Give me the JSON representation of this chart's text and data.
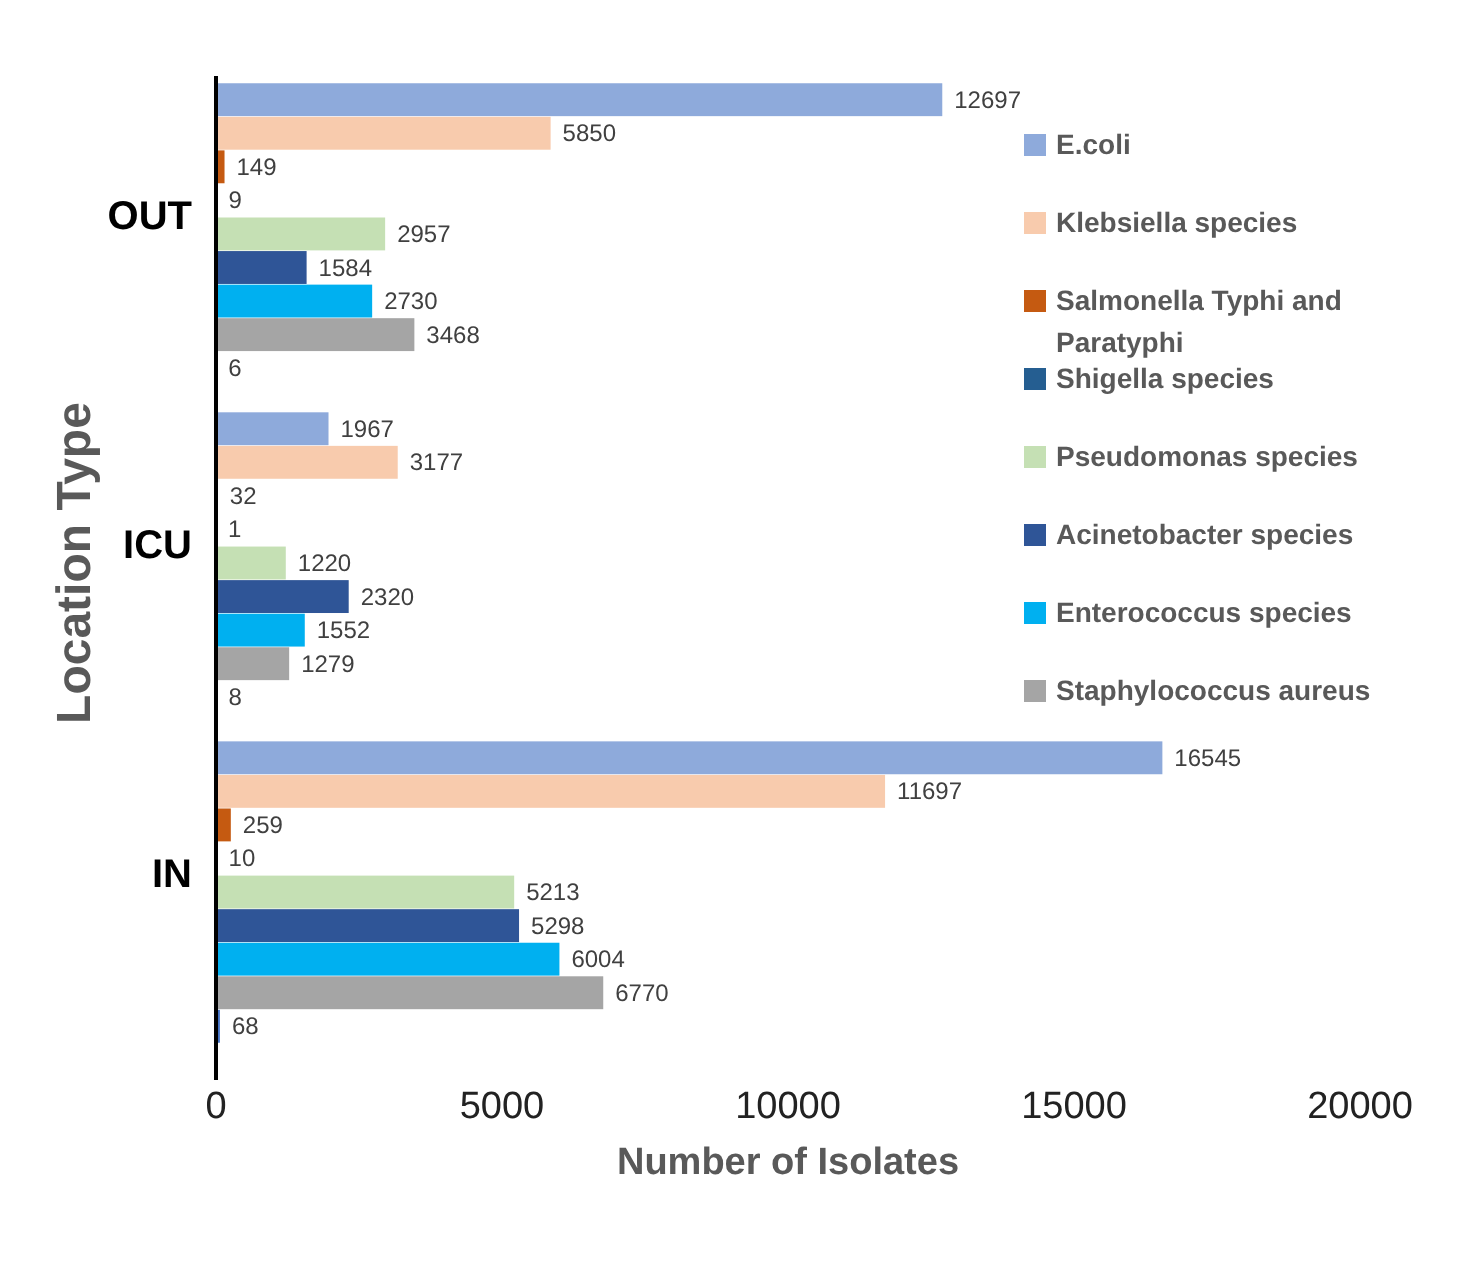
{
  "chart_data": {
    "type": "bar",
    "orientation": "horizontal",
    "xlabel": "Number of Isolates",
    "ylabel": "Location Type",
    "categories": [
      "OUT",
      "ICU",
      "IN"
    ],
    "series": [
      {
        "name": "E.coli",
        "color": "#8eaadb",
        "values": [
          12697,
          1967,
          16545
        ]
      },
      {
        "name": "Klebsiella species",
        "color": "#f8cbad",
        "values": [
          5850,
          3177,
          11697
        ]
      },
      {
        "name": "Salmonella Typhi and Paratyphi",
        "color": "#c55a11",
        "values": [
          149,
          32,
          259
        ]
      },
      {
        "name": "Shigella species",
        "color": "#255e91",
        "values": [
          9,
          1,
          10
        ]
      },
      {
        "name": "Pseudomonas species",
        "color": "#c5e0b4",
        "values": [
          2957,
          1220,
          5213
        ]
      },
      {
        "name": "Acinetobacter species",
        "color": "#2f5597",
        "values": [
          1584,
          2320,
          5298
        ]
      },
      {
        "name": "Enterococcus species",
        "color": "#00b0f0",
        "values": [
          2730,
          1552,
          6004
        ]
      },
      {
        "name": "Staphylococcus aureus",
        "color": "#a5a5a5",
        "values": [
          3468,
          1279,
          6770
        ]
      },
      {
        "color": "#4472c4",
        "values": [
          6,
          8,
          68
        ]
      }
    ],
    "xlim": [
      0,
      20000
    ],
    "xticks": [
      0,
      5000,
      10000,
      15000,
      20000
    ],
    "data_labels": true,
    "legend": "right",
    "grid": false
  }
}
